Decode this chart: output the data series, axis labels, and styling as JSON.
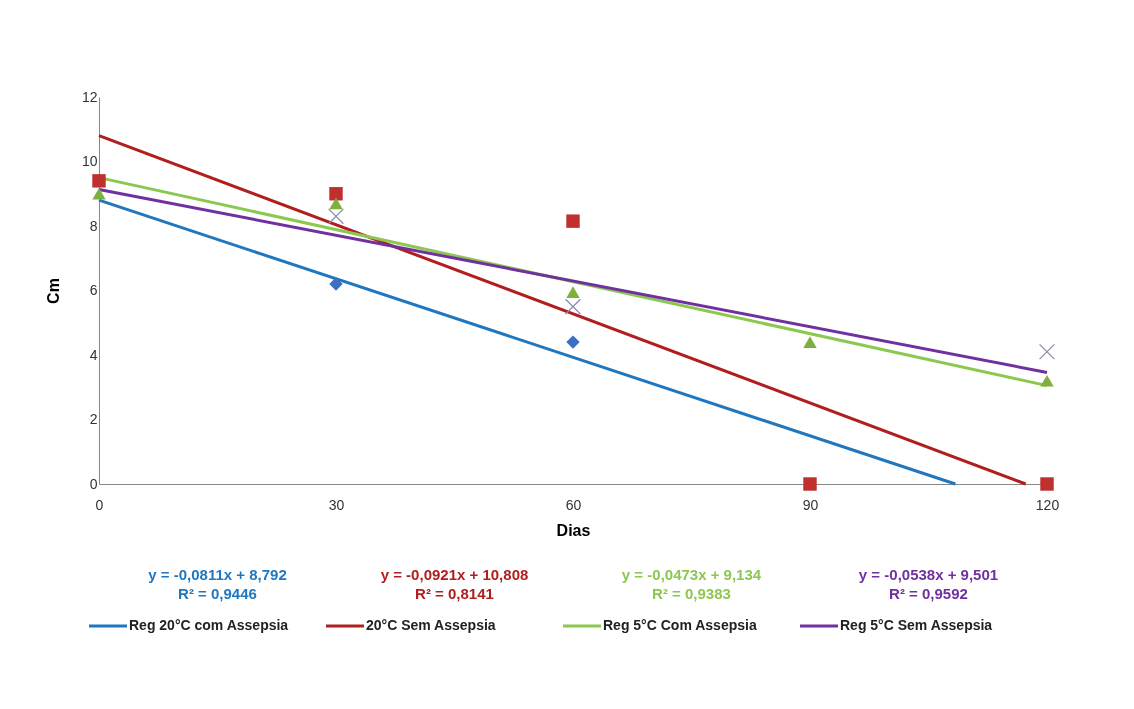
{
  "chart_data": {
    "type": "scatter",
    "xlabel": "Dias",
    "ylabel": "Cm",
    "xlim": [
      0,
      120
    ],
    "ylim": [
      0,
      12
    ],
    "xticks": [
      0,
      30,
      60,
      90,
      120
    ],
    "yticks": [
      0,
      2,
      4,
      6,
      8,
      10,
      12
    ],
    "grid": false,
    "legend": "bottom",
    "x": [
      0,
      30,
      60,
      90,
      120
    ],
    "series": [
      {
        "marker": "diamond",
        "color": "#3a6fc4",
        "values": [
          null,
          6.2,
          4.4,
          null,
          null
        ]
      },
      {
        "marker": "square",
        "color": "#c0302e",
        "values": [
          9.4,
          9.0,
          8.15,
          0,
          0
        ]
      },
      {
        "marker": "triangle",
        "color": "#7fb03e",
        "values": [
          9.0,
          8.7,
          5.95,
          4.4,
          3.2
        ]
      },
      {
        "marker": "cross",
        "color": "#8a8ab0",
        "values": [
          null,
          8.3,
          5.5,
          null,
          4.1
        ]
      },
      {
        "type": "line",
        "name": "Reg 20°C com Assepsia",
        "color": "#1f77c0",
        "x": [
          0,
          108.4
        ],
        "values": [
          8.8,
          0
        ]
      },
      {
        "type": "line",
        "name": "20°C Sem Assepsia",
        "color": "#b01e1e",
        "x": [
          0,
          117.3
        ],
        "values": [
          10.8,
          0
        ]
      },
      {
        "type": "line",
        "name": "Reg 5°C Com Assepsia",
        "color": "#8cc850",
        "x": [
          0,
          120
        ],
        "values": [
          9.5,
          3.05
        ]
      },
      {
        "type": "line",
        "name": "Reg 5°C Sem Assepsia",
        "color": "#7030a0",
        "x": [
          0,
          120
        ],
        "values": [
          9.13,
          3.46
        ]
      }
    ],
    "annotations": [
      "y = -0,0811x + 8,792\nR² = 0,9446",
      "y = -0,0921x + 10,808\nR² = 0,8141",
      "y = -0,0473x + 9,134\nR² = 0,9383",
      "y = -0,0538x + 9,501\nR² = 0,9592"
    ]
  }
}
